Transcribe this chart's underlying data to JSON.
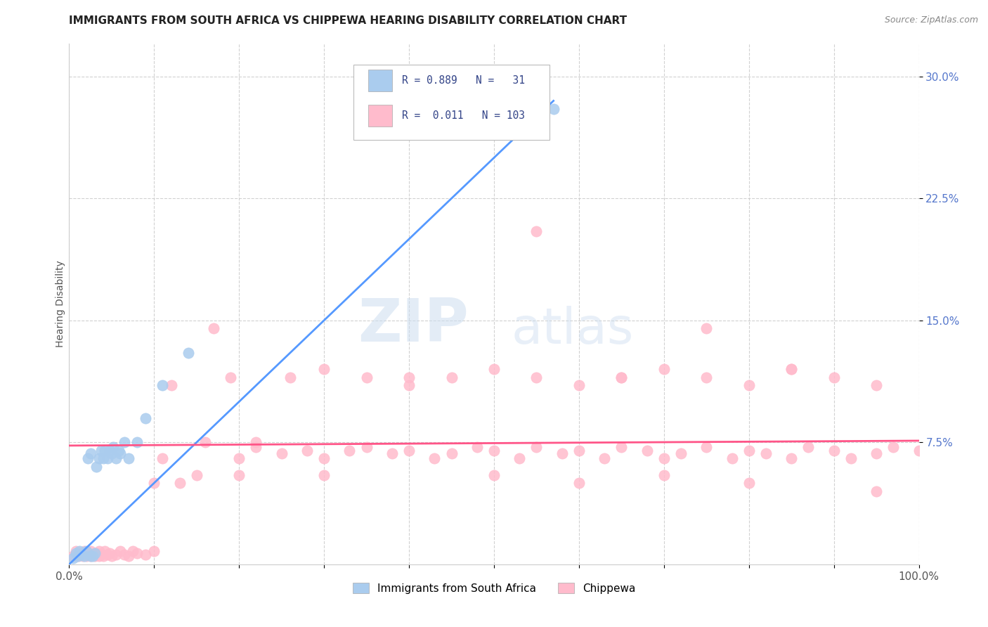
{
  "title": "IMMIGRANTS FROM SOUTH AFRICA VS CHIPPEWA HEARING DISABILITY CORRELATION CHART",
  "source": "Source: ZipAtlas.com",
  "ylabel": "Hearing Disability",
  "xlim": [
    0,
    1.0
  ],
  "ylim": [
    0,
    0.32
  ],
  "xtick_labels": [
    "0.0%",
    "",
    "",
    "",
    "",
    "",
    "",
    "",
    "",
    "",
    "100.0%"
  ],
  "xtick_vals": [
    0.0,
    0.1,
    0.2,
    0.3,
    0.4,
    0.5,
    0.6,
    0.7,
    0.8,
    0.9,
    1.0
  ],
  "ytick_labels": [
    "7.5%",
    "15.0%",
    "22.5%",
    "30.0%"
  ],
  "ytick_vals": [
    0.075,
    0.15,
    0.225,
    0.3
  ],
  "legend_entries": [
    "Immigrants from South Africa",
    "Chippewa"
  ],
  "blue_color": "#aaccee",
  "pink_color": "#ffbbcc",
  "line_blue": "#5599ff",
  "line_pink": "#ff5588",
  "R_blue": 0.889,
  "N_blue": 31,
  "R_pink": 0.011,
  "N_pink": 103,
  "watermark_zip": "ZIP",
  "watermark_atlas": "atlas",
  "title_fontsize": 11,
  "axis_label_fontsize": 10,
  "tick_fontsize": 11,
  "blue_line_x0": 0.0,
  "blue_line_y0": 0.0,
  "blue_line_x1": 0.57,
  "blue_line_y1": 0.285,
  "pink_line_x0": 0.0,
  "pink_line_y0": 0.073,
  "pink_line_x1": 1.0,
  "pink_line_y1": 0.076,
  "blue_scatter_x": [
    0.005,
    0.008,
    0.01,
    0.012,
    0.015,
    0.018,
    0.02,
    0.022,
    0.025,
    0.025,
    0.028,
    0.03,
    0.032,
    0.035,
    0.038,
    0.04,
    0.042,
    0.045,
    0.048,
    0.05,
    0.052,
    0.055,
    0.058,
    0.06,
    0.065,
    0.07,
    0.08,
    0.09,
    0.11,
    0.14,
    0.57
  ],
  "blue_scatter_y": [
    0.004,
    0.007,
    0.005,
    0.008,
    0.006,
    0.005,
    0.008,
    0.065,
    0.005,
    0.068,
    0.005,
    0.007,
    0.06,
    0.065,
    0.07,
    0.065,
    0.07,
    0.065,
    0.07,
    0.068,
    0.072,
    0.065,
    0.07,
    0.068,
    0.075,
    0.065,
    0.075,
    0.09,
    0.11,
    0.13,
    0.28
  ],
  "pink_scatter_x": [
    0.005,
    0.008,
    0.01,
    0.012,
    0.014,
    0.016,
    0.018,
    0.02,
    0.022,
    0.025,
    0.025,
    0.028,
    0.03,
    0.032,
    0.035,
    0.035,
    0.038,
    0.04,
    0.042,
    0.045,
    0.048,
    0.05,
    0.055,
    0.06,
    0.065,
    0.07,
    0.075,
    0.08,
    0.09,
    0.1,
    0.11,
    0.13,
    0.15,
    0.17,
    0.2,
    0.22,
    0.25,
    0.28,
    0.3,
    0.33,
    0.35,
    0.38,
    0.4,
    0.43,
    0.45,
    0.48,
    0.5,
    0.53,
    0.55,
    0.58,
    0.6,
    0.63,
    0.65,
    0.68,
    0.7,
    0.72,
    0.75,
    0.78,
    0.8,
    0.82,
    0.85,
    0.87,
    0.9,
    0.92,
    0.95,
    0.97,
    1.0,
    0.12,
    0.16,
    0.19,
    0.22,
    0.26,
    0.3,
    0.35,
    0.4,
    0.45,
    0.5,
    0.55,
    0.6,
    0.65,
    0.7,
    0.75,
    0.8,
    0.85,
    0.9,
    0.95,
    0.65,
    0.85,
    0.55,
    0.75,
    0.4,
    0.3,
    0.2,
    0.1,
    0.5,
    0.6,
    0.7,
    0.8,
    0.95
  ],
  "pink_scatter_y": [
    0.005,
    0.008,
    0.005,
    0.007,
    0.006,
    0.005,
    0.008,
    0.005,
    0.007,
    0.005,
    0.008,
    0.006,
    0.005,
    0.007,
    0.005,
    0.008,
    0.006,
    0.005,
    0.008,
    0.006,
    0.007,
    0.005,
    0.006,
    0.008,
    0.006,
    0.005,
    0.008,
    0.007,
    0.006,
    0.008,
    0.065,
    0.05,
    0.055,
    0.145,
    0.065,
    0.072,
    0.068,
    0.07,
    0.065,
    0.07,
    0.072,
    0.068,
    0.07,
    0.065,
    0.068,
    0.072,
    0.07,
    0.065,
    0.072,
    0.068,
    0.07,
    0.065,
    0.072,
    0.07,
    0.065,
    0.068,
    0.072,
    0.065,
    0.07,
    0.068,
    0.065,
    0.072,
    0.07,
    0.065,
    0.068,
    0.072,
    0.07,
    0.11,
    0.075,
    0.115,
    0.075,
    0.115,
    0.12,
    0.115,
    0.11,
    0.115,
    0.12,
    0.115,
    0.11,
    0.115,
    0.12,
    0.115,
    0.11,
    0.12,
    0.115,
    0.11,
    0.115,
    0.12,
    0.205,
    0.145,
    0.115,
    0.055,
    0.055,
    0.05,
    0.055,
    0.05,
    0.055,
    0.05,
    0.045
  ]
}
